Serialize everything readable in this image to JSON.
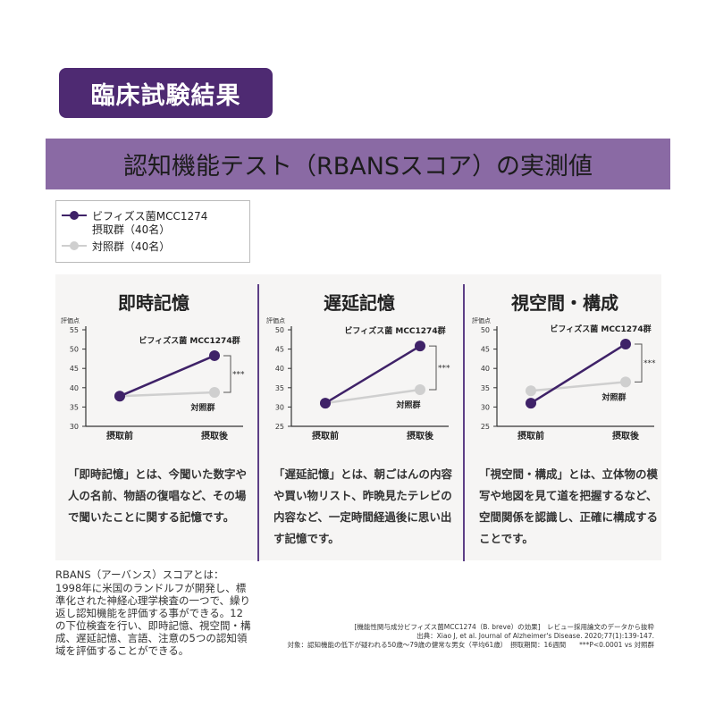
{
  "header": {
    "badge": "臨床試験結果",
    "banner": "認知機能テスト（RBANSスコア）の実測値"
  },
  "legend": [
    {
      "line1": "ビフィズス菌MCC1274",
      "line2": "摂取群（40名）",
      "color": "#3f2268"
    },
    {
      "line1": "対照群（40名）",
      "line2": "",
      "color": "#cfcfcf"
    }
  ],
  "colors": {
    "treatment": "#3f2268",
    "control": "#cfcfcf",
    "accent": "#5d3f86"
  },
  "chart_data": [
    {
      "type": "line",
      "title": "即時記憶",
      "ylabel": "評価点",
      "ylim": [
        30,
        55
      ],
      "yticks": [
        30,
        35,
        40,
        45,
        50,
        55
      ],
      "categories": [
        "摂取前",
        "摂取後"
      ],
      "series": [
        {
          "name": "ビフィズス菌 MCC1274群",
          "values": [
            37.8,
            48.3
          ]
        },
        {
          "name": "対照群",
          "values": [
            37.8,
            38.8
          ]
        }
      ],
      "significance": "***",
      "description": "「即時記憶」とは、今聞いた数字や人の名前、物語の復唱など、その場で聞いたことに関する記憶です。"
    },
    {
      "type": "line",
      "title": "遅延記憶",
      "ylabel": "評価点",
      "ylim": [
        25,
        50
      ],
      "yticks": [
        25,
        30,
        35,
        40,
        45,
        50
      ],
      "categories": [
        "摂取前",
        "摂取後"
      ],
      "series": [
        {
          "name": "ビフィズス菌 MCC1274群",
          "values": [
            31.0,
            45.8
          ]
        },
        {
          "name": "対照群",
          "values": [
            31.0,
            34.5
          ]
        }
      ],
      "significance": "***",
      "description": "「遅延記憶」とは、朝ごはんの内容や買い物リスト、昨晩見たテレビの内容など、一定時間経過後に思い出す記憶です。"
    },
    {
      "type": "line",
      "title": "視空間・構成",
      "ylabel": "評価点",
      "ylim": [
        25,
        50
      ],
      "yticks": [
        25,
        30,
        35,
        40,
        45,
        50
      ],
      "categories": [
        "摂取前",
        "摂取後"
      ],
      "series": [
        {
          "name": "ビフィズス菌 MCC1274群",
          "values": [
            31.0,
            46.3
          ]
        },
        {
          "name": "対照群",
          "values": [
            34.2,
            36.5
          ]
        }
      ],
      "significance": "***",
      "description": "「視空間・構成」とは、立体物の模写や地図を見て道を把握するなど、空間関係を認識し、正確に構成することです。"
    }
  ],
  "rbans": {
    "title": "RBANS（アーバンス）スコアとは：",
    "body": "1998年に米国のランドルフが開発し、標準化された神経心理学検査の一つで、繰り返し認知機能を評価する事ができる。12の下位検査を行い、即時記憶、視空間・構成、遅延記憶、言語、注意の5つの認知領域を評価することができる。"
  },
  "source": {
    "line1": "[機能性関与成分ビフィズス菌MCC1274（B. breve）の効果]　レビュー採用論文のデータから抜粋",
    "line2": "出典：Xiao J, et al. Journal of Alzheimer's Disease. 2020;77(1):139-147.",
    "line3": "対象：認知機能の低下が疑われる50歳〜79歳の健常な男女（平均61歳）　摂取期間：16週間　　***P<0.0001 vs 対照群"
  }
}
